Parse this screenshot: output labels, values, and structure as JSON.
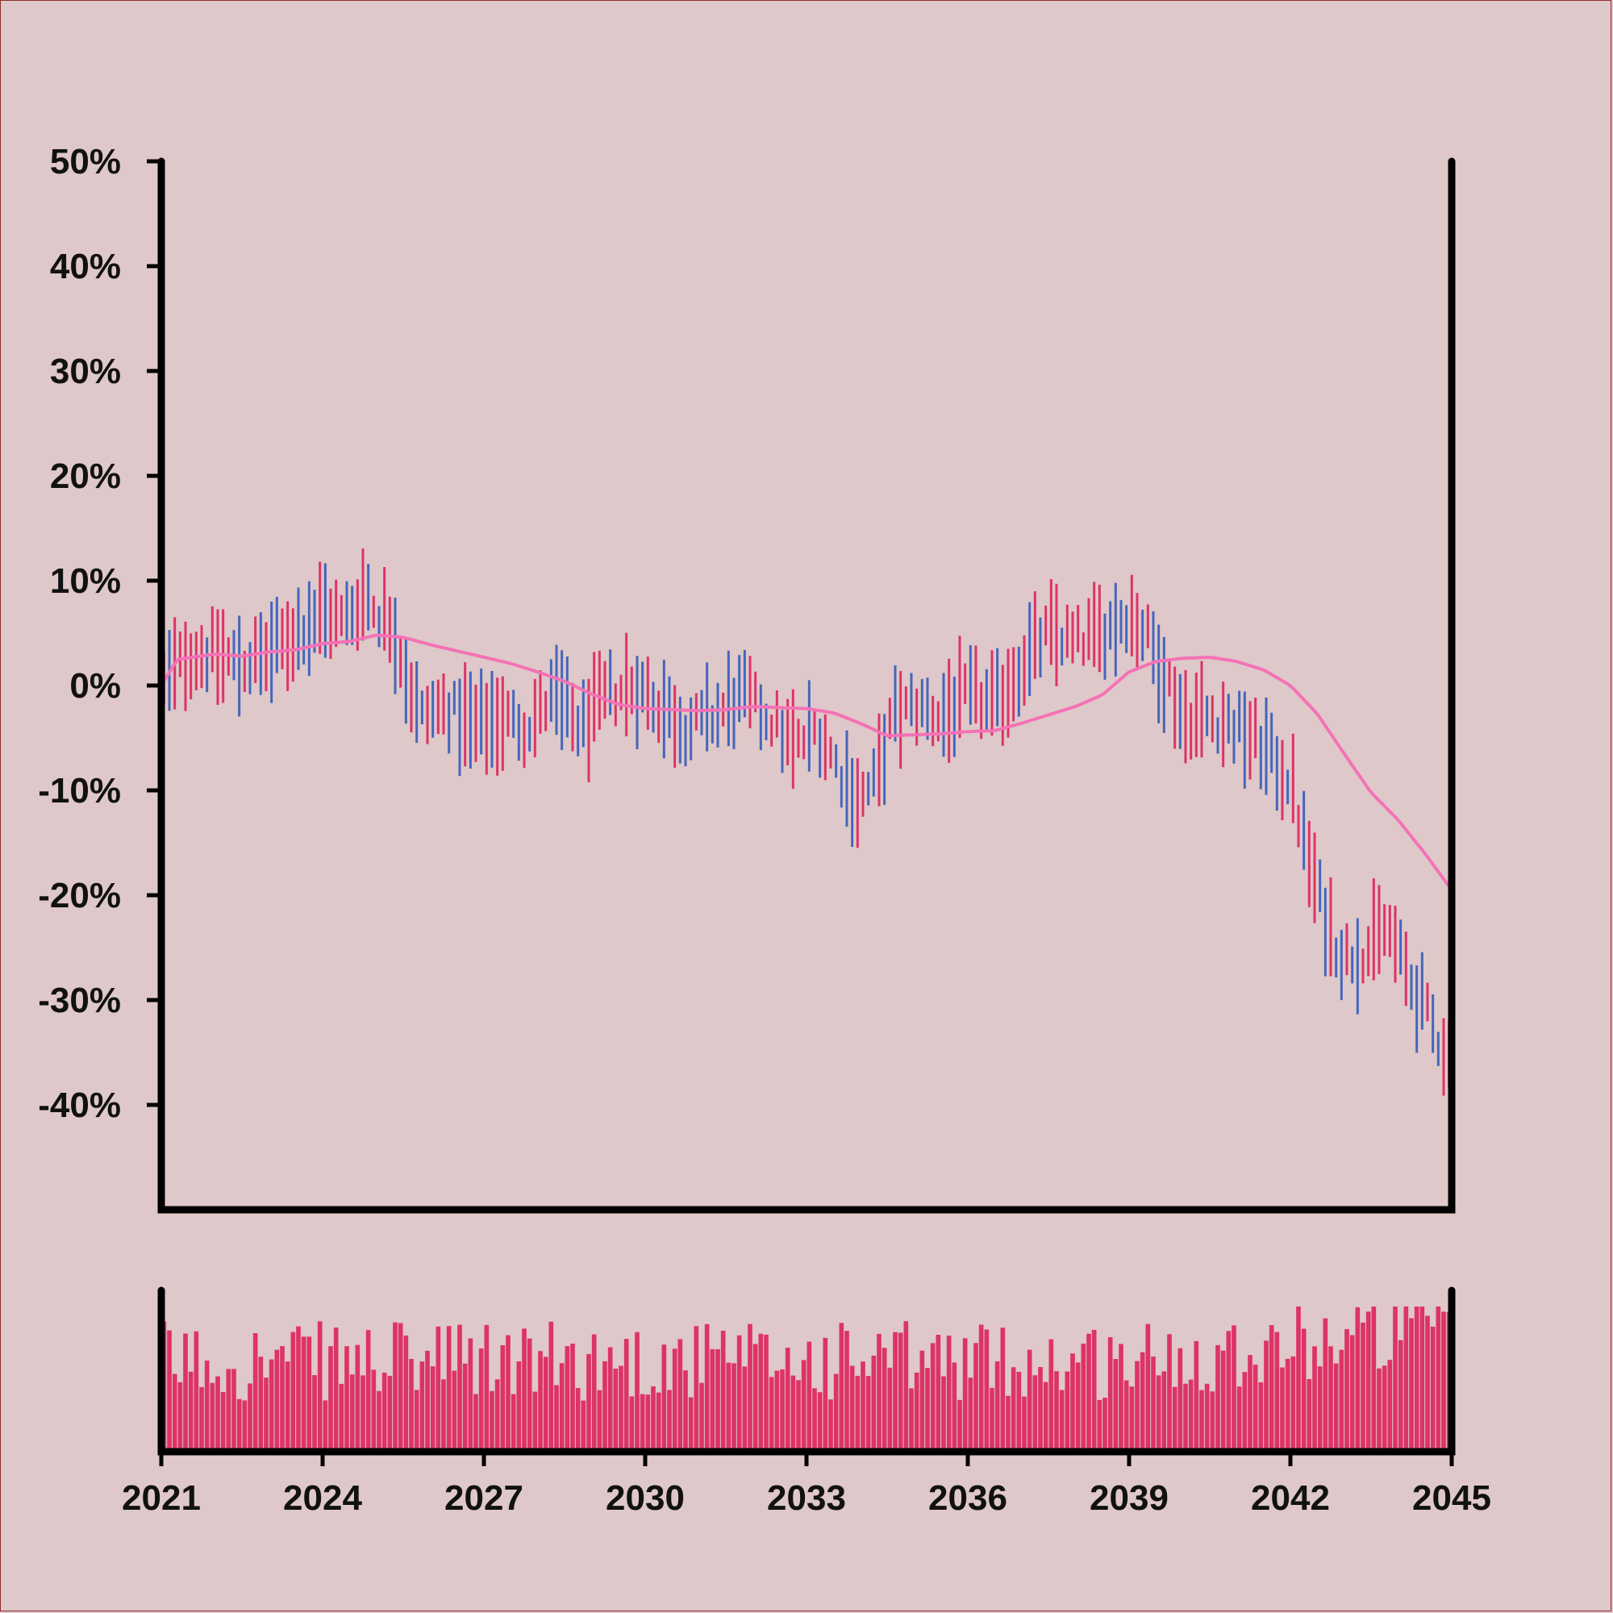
{
  "colors": {
    "background": "#dfc8c9",
    "bar_up": "#dd3366",
    "bar_down": "#4466bb",
    "moving_average": "#f472b6",
    "volume": "#dd3366",
    "axis": "#000000"
  },
  "chart_data": [
    {
      "type": "ohlc",
      "title": "",
      "xlabel": "",
      "ylabel": "",
      "x_range": [
        2021,
        2045
      ],
      "ylim": [
        -50,
        50
      ],
      "y_unit": "%",
      "y_ticks": [
        50,
        40,
        30,
        20,
        10,
        0,
        -10,
        -20,
        -30,
        -40
      ],
      "y_tick_labels": [
        "50%",
        "40%",
        "30%",
        "20%",
        "10%",
        "0%",
        "-10%",
        "-20%",
        "-30%",
        "-40%"
      ],
      "grid": false,
      "legend": "none",
      "bar_count": 240,
      "price_path": [
        [
          2021.0,
          0
        ],
        [
          2021.5,
          3
        ],
        [
          2022.0,
          3
        ],
        [
          2022.5,
          2
        ],
        [
          2023.0,
          3
        ],
        [
          2023.5,
          5
        ],
        [
          2024.0,
          7
        ],
        [
          2024.4,
          6
        ],
        [
          2024.8,
          9
        ],
        [
          2025.0,
          7
        ],
        [
          2025.3,
          6
        ],
        [
          2025.5,
          2
        ],
        [
          2025.8,
          -3
        ],
        [
          2026.3,
          -2
        ],
        [
          2026.8,
          -4
        ],
        [
          2027.3,
          -3
        ],
        [
          2027.8,
          -4
        ],
        [
          2028.3,
          -1
        ],
        [
          2028.8,
          -4
        ],
        [
          2029.3,
          -1
        ],
        [
          2029.8,
          0
        ],
        [
          2030.3,
          -2
        ],
        [
          2030.8,
          -4
        ],
        [
          2031.3,
          -3
        ],
        [
          2031.8,
          -1
        ],
        [
          2032.3,
          -3
        ],
        [
          2032.8,
          -6
        ],
        [
          2033.2,
          -4
        ],
        [
          2033.6,
          -8
        ],
        [
          2034.0,
          -11
        ],
        [
          2034.3,
          -9
        ],
        [
          2034.6,
          -3
        ],
        [
          2035.0,
          -2
        ],
        [
          2035.5,
          -3
        ],
        [
          2036.0,
          -1
        ],
        [
          2036.5,
          -2
        ],
        [
          2037.0,
          2
        ],
        [
          2037.5,
          5
        ],
        [
          2038.0,
          4
        ],
        [
          2038.5,
          5
        ],
        [
          2039.0,
          7
        ],
        [
          2039.3,
          5
        ],
        [
          2039.6,
          2
        ],
        [
          2040.0,
          -3
        ],
        [
          2040.5,
          -3
        ],
        [
          2041.0,
          -4
        ],
        [
          2041.5,
          -6
        ],
        [
          2042.0,
          -9
        ],
        [
          2042.3,
          -16
        ],
        [
          2042.7,
          -23
        ],
        [
          2043.0,
          -26
        ],
        [
          2043.5,
          -25
        ],
        [
          2043.8,
          -23
        ],
        [
          2044.2,
          -28
        ],
        [
          2044.6,
          -32
        ],
        [
          2045.0,
          -36
        ]
      ],
      "moving_average": [
        [
          2021.0,
          0
        ],
        [
          2021.3,
          2.5
        ],
        [
          2022.0,
          3
        ],
        [
          2022.5,
          2.8
        ],
        [
          2023.0,
          3.2
        ],
        [
          2023.5,
          3.4
        ],
        [
          2024.0,
          4
        ],
        [
          2024.5,
          4.2
        ],
        [
          2025.0,
          4.8
        ],
        [
          2025.5,
          4.6
        ],
        [
          2026.0,
          3.9
        ],
        [
          2026.5,
          3.3
        ],
        [
          2027.0,
          2.7
        ],
        [
          2027.5,
          2.1
        ],
        [
          2028.0,
          1.3
        ],
        [
          2028.5,
          0.4
        ],
        [
          2029.0,
          -0.8
        ],
        [
          2029.5,
          -1.8
        ],
        [
          2030.0,
          -2.2
        ],
        [
          2030.5,
          -2.3
        ],
        [
          2031.0,
          -2.4
        ],
        [
          2031.5,
          -2.3
        ],
        [
          2032.0,
          -2
        ],
        [
          2032.5,
          -2.1
        ],
        [
          2033.0,
          -2.2
        ],
        [
          2033.5,
          -2.6
        ],
        [
          2034.0,
          -3.6
        ],
        [
          2034.5,
          -4.8
        ],
        [
          2035.0,
          -4.7
        ],
        [
          2035.5,
          -4.6
        ],
        [
          2036.0,
          -4.4
        ],
        [
          2036.5,
          -4.3
        ],
        [
          2037.0,
          -3.6
        ],
        [
          2037.5,
          -2.8
        ],
        [
          2038.0,
          -2
        ],
        [
          2038.5,
          -0.9
        ],
        [
          2039.0,
          1.3
        ],
        [
          2039.5,
          2.3
        ],
        [
          2040.0,
          2.6
        ],
        [
          2040.5,
          2.7
        ],
        [
          2041.0,
          2.3
        ],
        [
          2041.5,
          1.5
        ],
        [
          2042.0,
          0
        ],
        [
          2042.5,
          -2.7
        ],
        [
          2043.0,
          -6.5
        ],
        [
          2043.5,
          -10.2
        ],
        [
          2044.0,
          -12.8
        ],
        [
          2044.5,
          -16
        ],
        [
          2045.0,
          -19.5
        ]
      ]
    },
    {
      "type": "bar",
      "title": "",
      "xlabel": "",
      "ylabel": "",
      "x_range": [
        2021,
        2045
      ],
      "x_ticks": [
        2021,
        2024,
        2027,
        2030,
        2033,
        2036,
        2039,
        2042,
        2045
      ],
      "x_tick_labels": [
        "2021",
        "2024",
        "2027",
        "2030",
        "2033",
        "2036",
        "2039",
        "2042",
        "2045"
      ],
      "grid": false,
      "legend": "none",
      "series": [
        {
          "values": "volume bars (one per price bar), unlabeled y-axis"
        }
      ]
    }
  ]
}
